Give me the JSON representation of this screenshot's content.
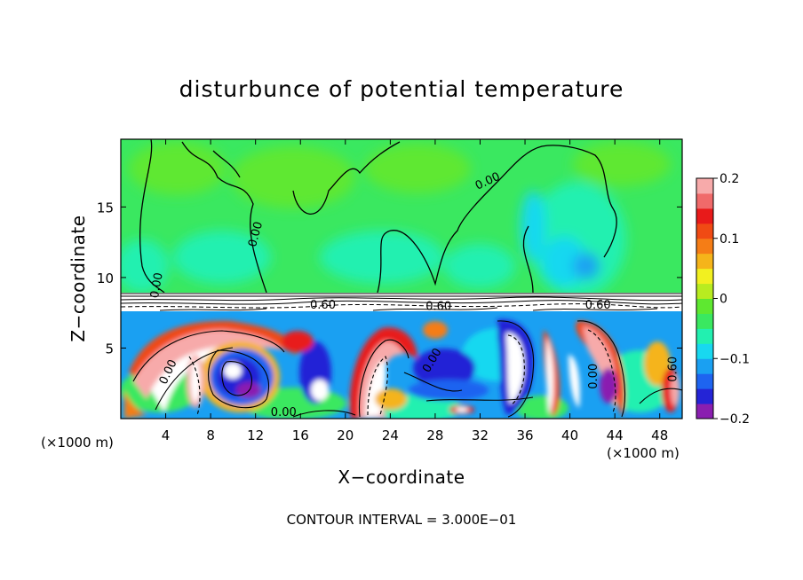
{
  "chart_data": {
    "type": "heatmap",
    "title": "disturbunce of potential temperature",
    "xlabel": "X−coordinate",
    "ylabel": "Z−coordinate",
    "x_unit_label": "(×1000 m)",
    "x_ticks": [
      4,
      8,
      12,
      16,
      20,
      24,
      28,
      32,
      36,
      40,
      44,
      48
    ],
    "y_ticks": [
      5,
      10,
      15
    ],
    "xlim": [
      0,
      50
    ],
    "ylim": [
      0,
      19.8
    ],
    "colorbar": {
      "ticks": [
        "0.2",
        "0.1",
        "0",
        "−0.1",
        "−0.2"
      ],
      "range": [
        -0.2,
        0.2
      ],
      "colors": [
        "#8a1fb0",
        "#2424d6",
        "#1e64f0",
        "#1aa0f2",
        "#18d8f0",
        "#22f0b0",
        "#3ae860",
        "#5ee830",
        "#b8ec20",
        "#f2f020",
        "#f5b41a",
        "#f57d16",
        "#f04a14",
        "#e81a1a",
        "#f06a6a",
        "#f7aaaa"
      ]
    },
    "contour_labels": [
      "0.00",
      "0.00",
      "0.00",
      "0.00",
      "0.00",
      "0.00",
      "0.00",
      "0.60",
      "0.60",
      "0.60",
      "0.60"
    ],
    "contour_interval_text": "CONTOUR INTERVAL = 3.000E−01"
  }
}
